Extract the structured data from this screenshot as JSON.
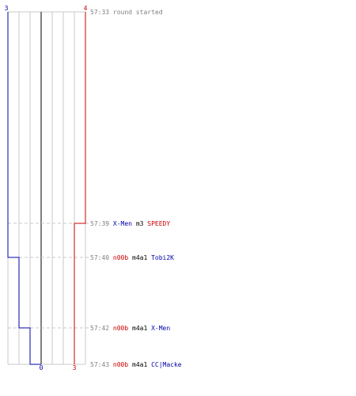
{
  "colors": {
    "team_left": "#0000aa",
    "team_right": "#cc0000",
    "grid": "#c8c8c8",
    "center": "#808080",
    "dashed": "#c8c8c8",
    "time_text": "#808080",
    "neutral_text": "#000000"
  },
  "scores": {
    "left_start": "3",
    "right_start": "4",
    "left_end": "0",
    "right_end": "3"
  },
  "events": [
    {
      "time": "57:33",
      "text": "round started",
      "killer": "",
      "weapon": "",
      "victim": "",
      "killer_team": "",
      "victim_team": ""
    },
    {
      "time": "57:39",
      "text": "",
      "killer": "X-Men",
      "weapon": "m3",
      "victim": "SPEEDY",
      "killer_team": "left",
      "victim_team": "right"
    },
    {
      "time": "57:40",
      "text": "",
      "killer": "n00b",
      "weapon": "m4a1",
      "victim": "Tobi2K",
      "killer_team": "right",
      "victim_team": "left"
    },
    {
      "time": "57:42",
      "text": "",
      "killer": "n00b",
      "weapon": "m4a1",
      "victim": "X-Men",
      "killer_team": "right",
      "victim_team": "left"
    },
    {
      "time": "57:43",
      "text": "",
      "killer": "n00b",
      "weapon": "m4a1",
      "victim": "CC|Macke",
      "killer_team": "right",
      "victim_team": "left"
    }
  ]
}
